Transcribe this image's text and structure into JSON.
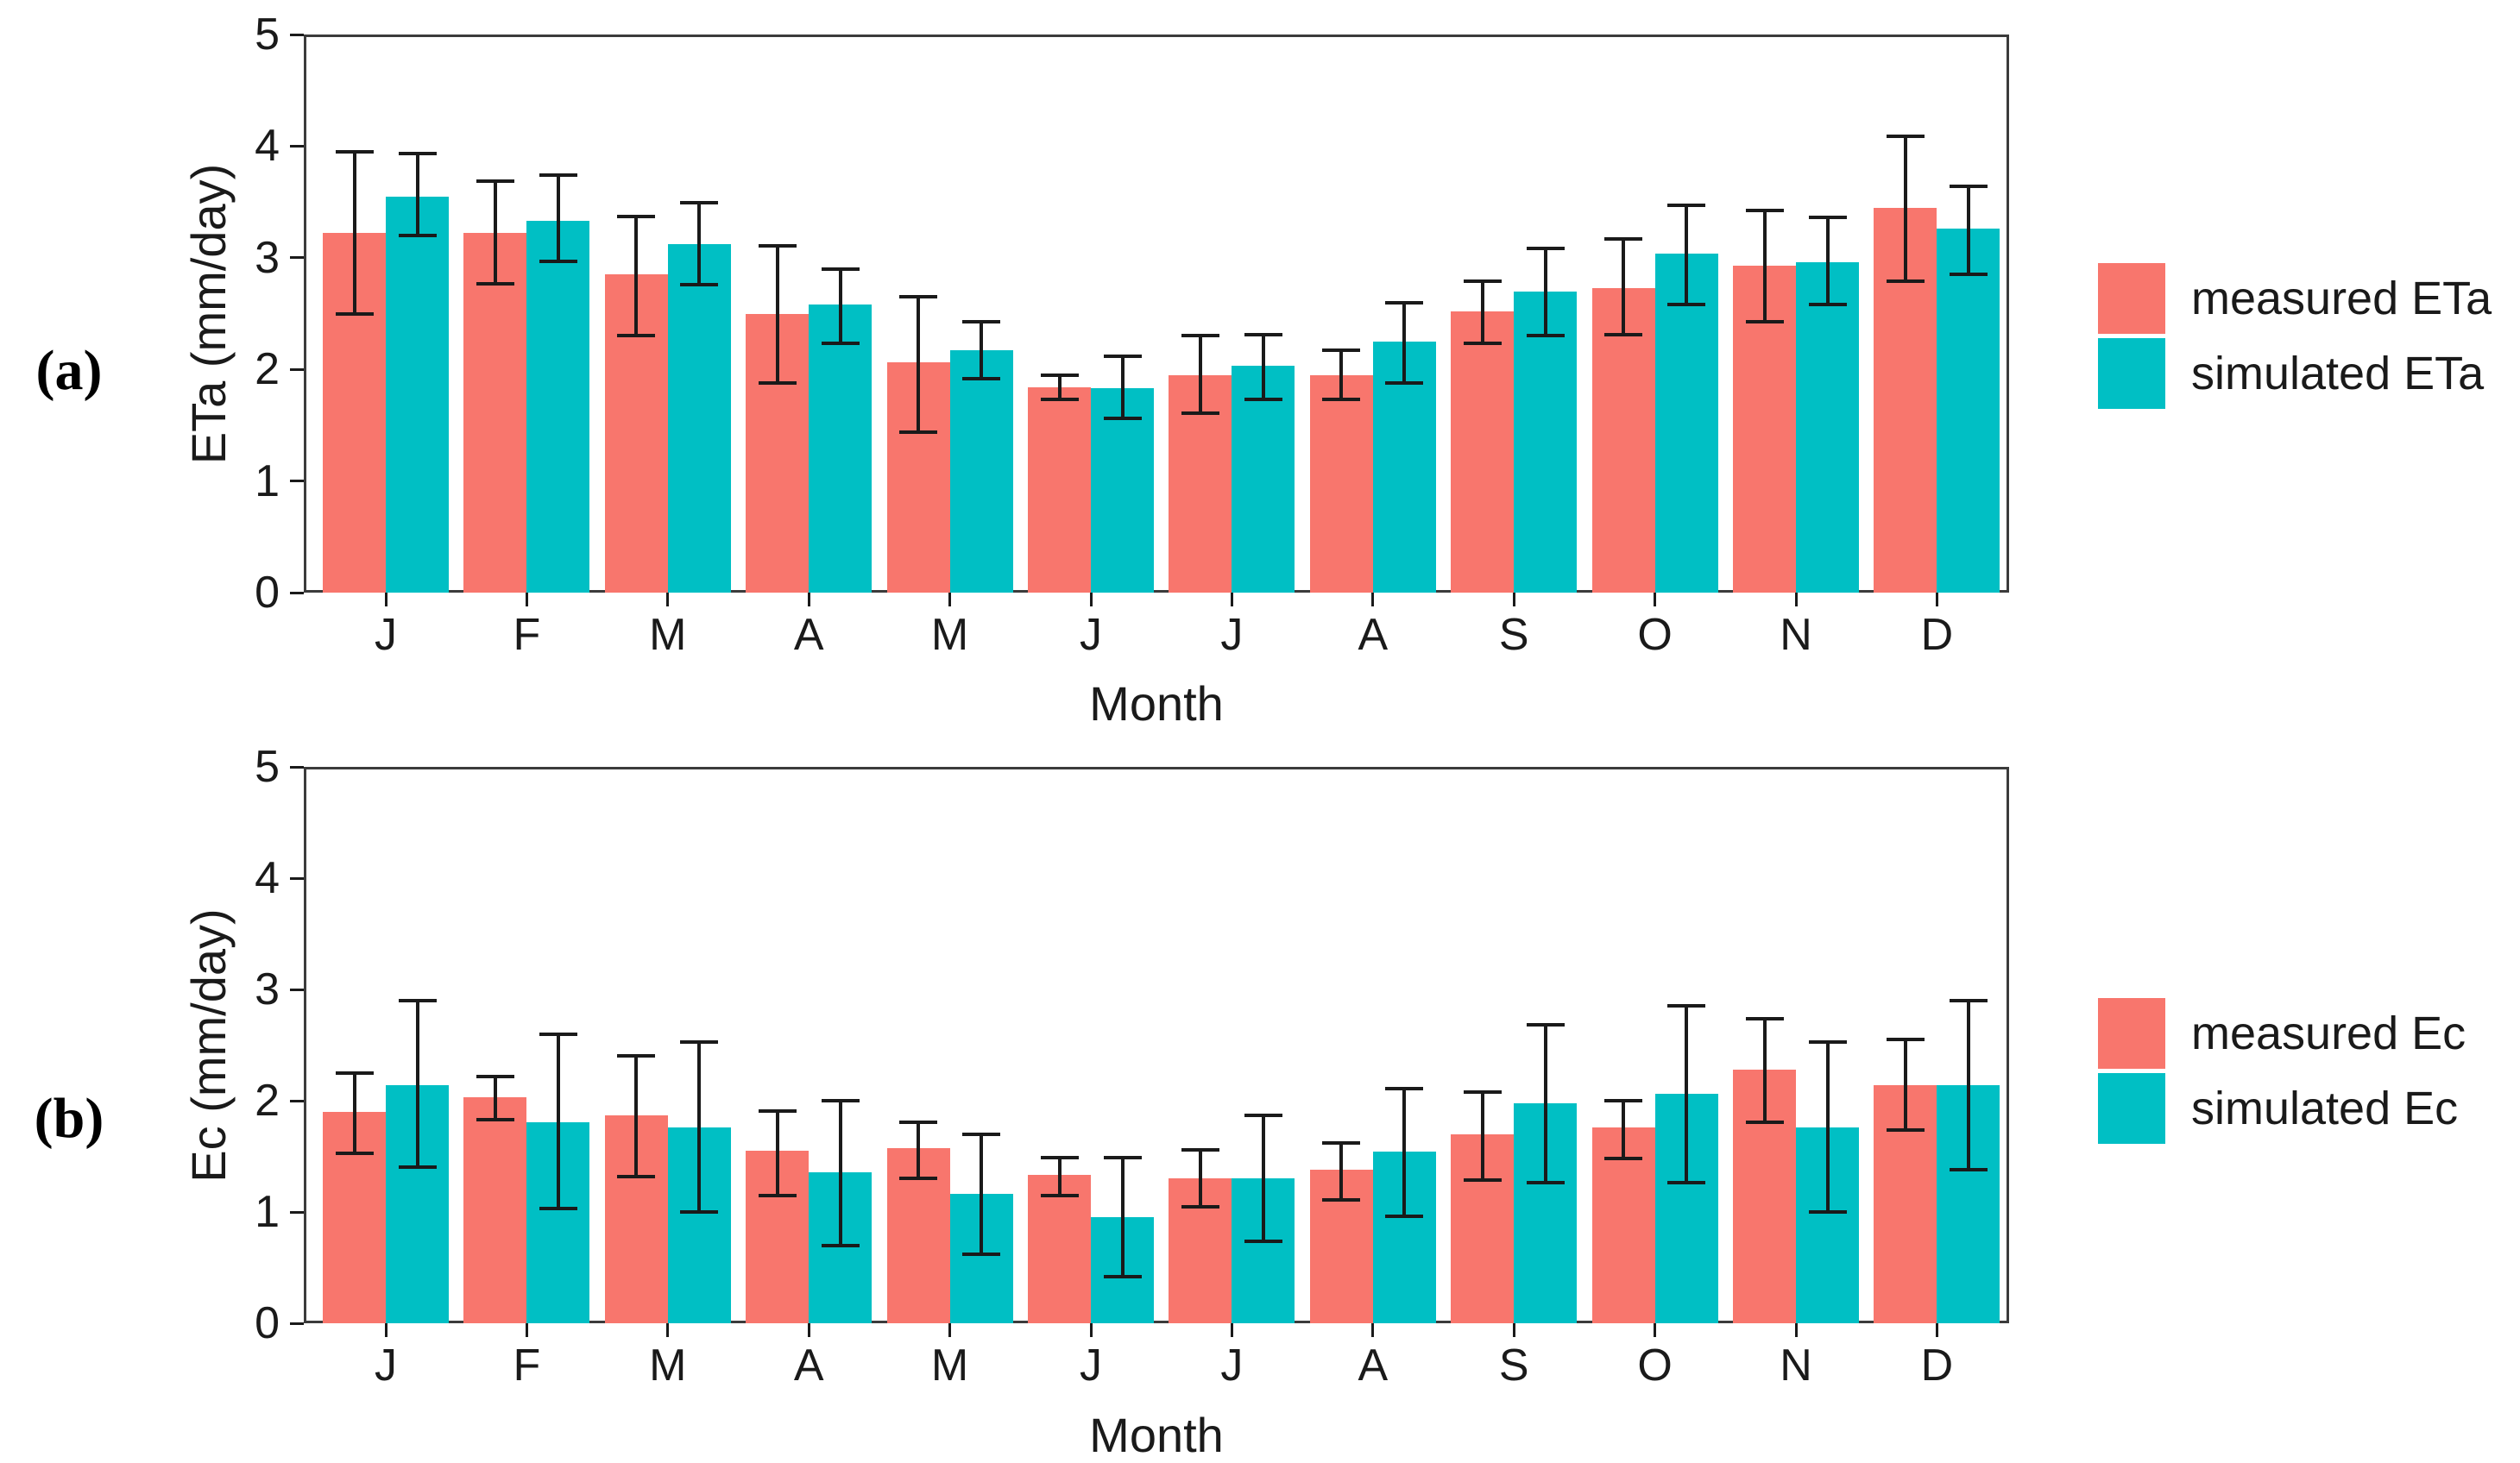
{
  "figure": {
    "background": "#ffffff",
    "axis_color": "#3b3b3b",
    "error_bar_color": "#1a1a1a",
    "text_color": "#1a1a1a"
  },
  "chart_data": [
    {
      "type": "bar",
      "panel_label": "(a)",
      "categories": [
        "J",
        "F",
        "M",
        "A",
        "M",
        "J",
        "J",
        "A",
        "S",
        "O",
        "N",
        "D"
      ],
      "xlabel": "Month",
      "ylabel": "ETa (mm/day)",
      "ylim": [
        0,
        5
      ],
      "yticks": [
        0,
        1,
        2,
        3,
        4,
        5
      ],
      "grid": "off",
      "legend_position": "right",
      "error_bars": true,
      "series": [
        {
          "name": "measured ETa",
          "color": "#F8766D",
          "values": [
            3.22,
            3.22,
            2.85,
            2.5,
            2.06,
            1.84,
            1.95,
            1.95,
            2.52,
            2.73,
            2.93,
            3.45
          ],
          "err_low": [
            2.5,
            2.77,
            2.3,
            1.88,
            1.44,
            1.73,
            1.61,
            1.73,
            2.23,
            2.31,
            2.43,
            2.79
          ],
          "err_high": [
            3.95,
            3.69,
            3.37,
            3.11,
            2.65,
            1.95,
            2.3,
            2.17,
            2.79,
            3.17,
            3.42,
            4.09
          ]
        },
        {
          "name": "simulated ETa",
          "color": "#00BFC4",
          "values": [
            3.55,
            3.33,
            3.12,
            2.58,
            2.17,
            1.83,
            2.03,
            2.25,
            2.7,
            3.04,
            2.96,
            3.26
          ],
          "err_low": [
            3.2,
            2.97,
            2.76,
            2.23,
            1.92,
            1.56,
            1.73,
            1.88,
            2.3,
            2.58,
            2.58,
            2.85
          ],
          "err_high": [
            3.93,
            3.74,
            3.49,
            2.9,
            2.43,
            2.12,
            2.31,
            2.6,
            3.08,
            3.47,
            3.36,
            3.64
          ]
        }
      ]
    },
    {
      "type": "bar",
      "panel_label": "(b)",
      "categories": [
        "J",
        "F",
        "M",
        "A",
        "M",
        "J",
        "J",
        "A",
        "S",
        "O",
        "N",
        "D"
      ],
      "xlabel": "Month",
      "ylabel": "Ec (mm/day)",
      "ylim": [
        0,
        5
      ],
      "yticks": [
        0,
        1,
        2,
        3,
        4,
        5
      ],
      "grid": "off",
      "legend_position": "right",
      "error_bars": true,
      "series": [
        {
          "name": "measured Ec",
          "color": "#F8766D",
          "values": [
            1.9,
            2.03,
            1.87,
            1.55,
            1.57,
            1.33,
            1.3,
            1.38,
            1.7,
            1.76,
            2.28,
            2.14
          ],
          "err_low": [
            1.53,
            1.83,
            1.32,
            1.15,
            1.3,
            1.15,
            1.05,
            1.11,
            1.29,
            1.48,
            1.81,
            1.74
          ],
          "err_high": [
            2.25,
            2.22,
            2.4,
            1.91,
            1.81,
            1.49,
            1.56,
            1.62,
            2.08,
            2.0,
            2.74,
            2.55
          ]
        },
        {
          "name": "simulated Ec",
          "color": "#00BFC4",
          "values": [
            2.14,
            1.81,
            1.76,
            1.36,
            1.16,
            0.95,
            1.3,
            1.54,
            1.98,
            2.06,
            1.76,
            2.14
          ],
          "err_low": [
            1.4,
            1.03,
            1.0,
            0.7,
            0.62,
            0.42,
            0.74,
            0.96,
            1.26,
            1.26,
            1.0,
            1.38
          ],
          "err_high": [
            2.9,
            2.6,
            2.53,
            2.0,
            1.7,
            1.49,
            1.87,
            2.11,
            2.68,
            2.85,
            2.53,
            2.9
          ]
        }
      ]
    }
  ]
}
